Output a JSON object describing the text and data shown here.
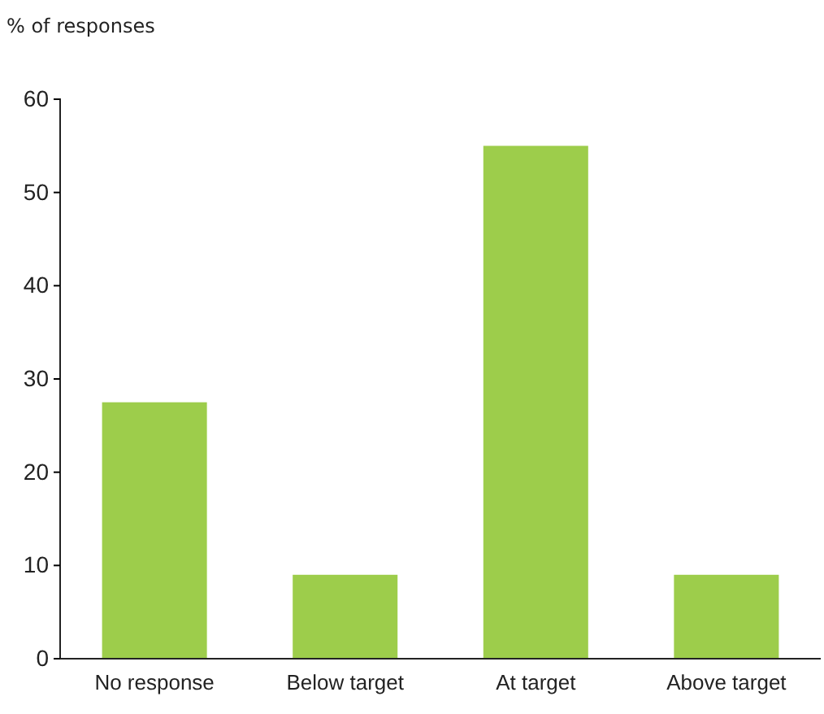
{
  "chart_data": {
    "type": "bar",
    "ylabel": "% of responses",
    "categories": [
      "No response",
      "Below target",
      "At target",
      "Above target"
    ],
    "values": [
      27.5,
      9,
      55,
      9
    ],
    "color": "#9dcd4b",
    "ylim": [
      0,
      60
    ],
    "yticks": [
      0,
      10,
      20,
      30,
      40,
      50,
      60
    ],
    "grid": false
  }
}
